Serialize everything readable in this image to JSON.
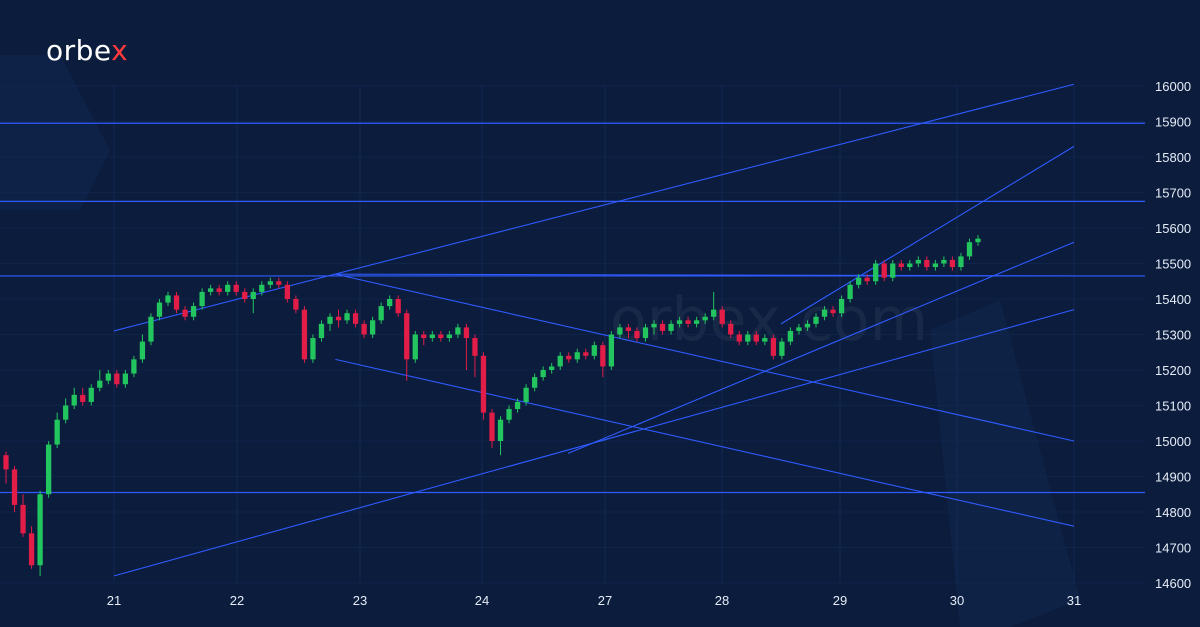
{
  "brand": {
    "logo_text": "orbex",
    "watermark": "orbex.com",
    "accent": "#ff3b3b"
  },
  "colors": {
    "background": "#0b1c3d",
    "grid": "#132a52",
    "level_line": "#2f5bff",
    "up": "#22c55e",
    "down": "#e11d48"
  },
  "chart_data": {
    "type": "candlestick",
    "title": "",
    "xlabel": "",
    "ylabel": "",
    "ylim": [
      14600,
      16000
    ],
    "y_ticks": [
      14600,
      14700,
      14800,
      14900,
      15000,
      15100,
      15200,
      15300,
      15400,
      15500,
      15600,
      15700,
      15800,
      15900,
      16000
    ],
    "x_ticks": [
      "21",
      "22",
      "23",
      "24",
      "27",
      "28",
      "29",
      "30",
      "31"
    ],
    "grid": true,
    "horizontal_levels": [
      15895,
      15675,
      15465,
      14855
    ],
    "trend_lines": [
      {
        "from": [
          "20.3",
          15310
        ],
        "to": [
          "30.9",
          16005
        ]
      },
      {
        "from": [
          "26.5",
          15330
        ],
        "to": [
          "31.7",
          15830
        ]
      },
      {
        "from": [
          "24.7",
          14965
        ],
        "to": [
          "31.7",
          15560
        ]
      },
      {
        "from": [
          "20.4",
          14620
        ],
        "to": [
          "31.7",
          15370
        ]
      },
      {
        "from": [
          "22.8",
          15470
        ],
        "to": [
          "31.7",
          15000
        ]
      },
      {
        "from": [
          "22.8",
          15230
        ],
        "to": [
          "31.7",
          14760
        ]
      },
      {
        "from": [
          "22.8",
          15470
        ],
        "to": [
          "31.7",
          15465
        ]
      }
    ],
    "candles": [
      [
        14960,
        14920,
        14970,
        14880
      ],
      [
        14920,
        14820,
        14930,
        14800
      ],
      [
        14820,
        14740,
        14850,
        14730
      ],
      [
        14740,
        14650,
        14760,
        14640
      ],
      [
        14650,
        14850,
        14860,
        14620
      ],
      [
        14850,
        14990,
        15000,
        14840
      ],
      [
        14990,
        15060,
        15080,
        14980
      ],
      [
        15060,
        15100,
        15120,
        15050
      ],
      [
        15100,
        15130,
        15150,
        15090
      ],
      [
        15130,
        15110,
        15150,
        15100
      ],
      [
        15110,
        15150,
        15160,
        15100
      ],
      [
        15150,
        15170,
        15200,
        15140
      ],
      [
        15170,
        15190,
        15200,
        15160
      ],
      [
        15190,
        15160,
        15200,
        15150
      ],
      [
        15160,
        15190,
        15200,
        15150
      ],
      [
        15190,
        15230,
        15240,
        15180
      ],
      [
        15230,
        15280,
        15300,
        15220
      ],
      [
        15280,
        15350,
        15360,
        15270
      ],
      [
        15350,
        15390,
        15400,
        15340
      ],
      [
        15390,
        15410,
        15420,
        15380
      ],
      [
        15410,
        15370,
        15420,
        15360
      ],
      [
        15370,
        15350,
        15380,
        15340
      ],
      [
        15350,
        15380,
        15390,
        15340
      ],
      [
        15380,
        15420,
        15430,
        15370
      ],
      [
        15420,
        15430,
        15440,
        15410
      ],
      [
        15430,
        15420,
        15440,
        15410
      ],
      [
        15420,
        15440,
        15450,
        15410
      ],
      [
        15440,
        15420,
        15450,
        15410
      ],
      [
        15420,
        15400,
        15430,
        15390
      ],
      [
        15400,
        15420,
        15430,
        15360
      ],
      [
        15420,
        15440,
        15450,
        15410
      ],
      [
        15440,
        15450,
        15460,
        15430
      ],
      [
        15450,
        15440,
        15460,
        15430
      ],
      [
        15440,
        15400,
        15450,
        15390
      ],
      [
        15400,
        15370,
        15410,
        15360
      ],
      [
        15370,
        15230,
        15380,
        15220
      ],
      [
        15230,
        15290,
        15300,
        15220
      ],
      [
        15290,
        15330,
        15340,
        15280
      ],
      [
        15330,
        15350,
        15360,
        15310
      ],
      [
        15350,
        15340,
        15370,
        15320
      ],
      [
        15340,
        15360,
        15370,
        15330
      ],
      [
        15360,
        15330,
        15370,
        15320
      ],
      [
        15330,
        15300,
        15340,
        15290
      ],
      [
        15300,
        15340,
        15350,
        15290
      ],
      [
        15340,
        15380,
        15390,
        15330
      ],
      [
        15380,
        15400,
        15410,
        15370
      ],
      [
        15400,
        15360,
        15410,
        15350
      ],
      [
        15360,
        15230,
        15370,
        15170
      ],
      [
        15230,
        15300,
        15310,
        15220
      ],
      [
        15300,
        15290,
        15310,
        15270
      ],
      [
        15290,
        15300,
        15310,
        15280
      ],
      [
        15300,
        15290,
        15310,
        15280
      ],
      [
        15290,
        15300,
        15310,
        15280
      ],
      [
        15300,
        15320,
        15330,
        15290
      ],
      [
        15320,
        15290,
        15330,
        15200
      ],
      [
        15290,
        15240,
        15300,
        15180
      ],
      [
        15240,
        15080,
        15250,
        15060
      ],
      [
        15080,
        15000,
        15090,
        14980
      ],
      [
        15000,
        15060,
        15070,
        14960
      ],
      [
        15060,
        15090,
        15100,
        15050
      ],
      [
        15090,
        15110,
        15120,
        15080
      ],
      [
        15110,
        15150,
        15160,
        15100
      ],
      [
        15150,
        15180,
        15190,
        15140
      ],
      [
        15180,
        15200,
        15210,
        15170
      ],
      [
        15200,
        15210,
        15220,
        15190
      ],
      [
        15210,
        15240,
        15250,
        15200
      ],
      [
        15240,
        15230,
        15250,
        15220
      ],
      [
        15230,
        15250,
        15260,
        15220
      ],
      [
        15250,
        15240,
        15260,
        15230
      ],
      [
        15240,
        15270,
        15280,
        15230
      ],
      [
        15270,
        15210,
        15280,
        15180
      ],
      [
        15210,
        15300,
        15310,
        15200
      ],
      [
        15300,
        15320,
        15330,
        15290
      ],
      [
        15320,
        15310,
        15330,
        15290
      ],
      [
        15310,
        15290,
        15320,
        15280
      ],
      [
        15290,
        15320,
        15330,
        15280
      ],
      [
        15320,
        15330,
        15340,
        15300
      ],
      [
        15330,
        15310,
        15340,
        15300
      ],
      [
        15310,
        15330,
        15340,
        15300
      ],
      [
        15330,
        15340,
        15350,
        15320
      ],
      [
        15340,
        15330,
        15350,
        15320
      ],
      [
        15330,
        15340,
        15350,
        15320
      ],
      [
        15340,
        15350,
        15360,
        15330
      ],
      [
        15350,
        15370,
        15420,
        15340
      ],
      [
        15370,
        15330,
        15380,
        15320
      ],
      [
        15330,
        15300,
        15340,
        15290
      ],
      [
        15300,
        15280,
        15310,
        15270
      ],
      [
        15280,
        15300,
        15310,
        15270
      ],
      [
        15300,
        15280,
        15310,
        15270
      ],
      [
        15280,
        15290,
        15300,
        15270
      ],
      [
        15290,
        15240,
        15300,
        15230
      ],
      [
        15240,
        15280,
        15290,
        15230
      ],
      [
        15280,
        15310,
        15320,
        15270
      ],
      [
        15310,
        15320,
        15330,
        15300
      ],
      [
        15320,
        15330,
        15340,
        15310
      ],
      [
        15330,
        15350,
        15360,
        15320
      ],
      [
        15350,
        15370,
        15380,
        15340
      ],
      [
        15370,
        15360,
        15380,
        15350
      ],
      [
        15360,
        15400,
        15410,
        15350
      ],
      [
        15400,
        15440,
        15450,
        15390
      ],
      [
        15440,
        15460,
        15470,
        15430
      ],
      [
        15460,
        15450,
        15470,
        15440
      ],
      [
        15450,
        15500,
        15510,
        15440
      ],
      [
        15500,
        15460,
        15510,
        15450
      ],
      [
        15460,
        15500,
        15510,
        15450
      ],
      [
        15500,
        15490,
        15510,
        15480
      ],
      [
        15490,
        15500,
        15510,
        15480
      ],
      [
        15500,
        15510,
        15520,
        15490
      ],
      [
        15510,
        15490,
        15520,
        15480
      ],
      [
        15490,
        15500,
        15510,
        15480
      ],
      [
        15500,
        15510,
        15520,
        15490
      ],
      [
        15510,
        15490,
        15520,
        15480
      ],
      [
        15490,
        15520,
        15530,
        15480
      ],
      [
        15520,
        15560,
        15570,
        15510
      ],
      [
        15560,
        15570,
        15580,
        15550
      ]
    ]
  }
}
